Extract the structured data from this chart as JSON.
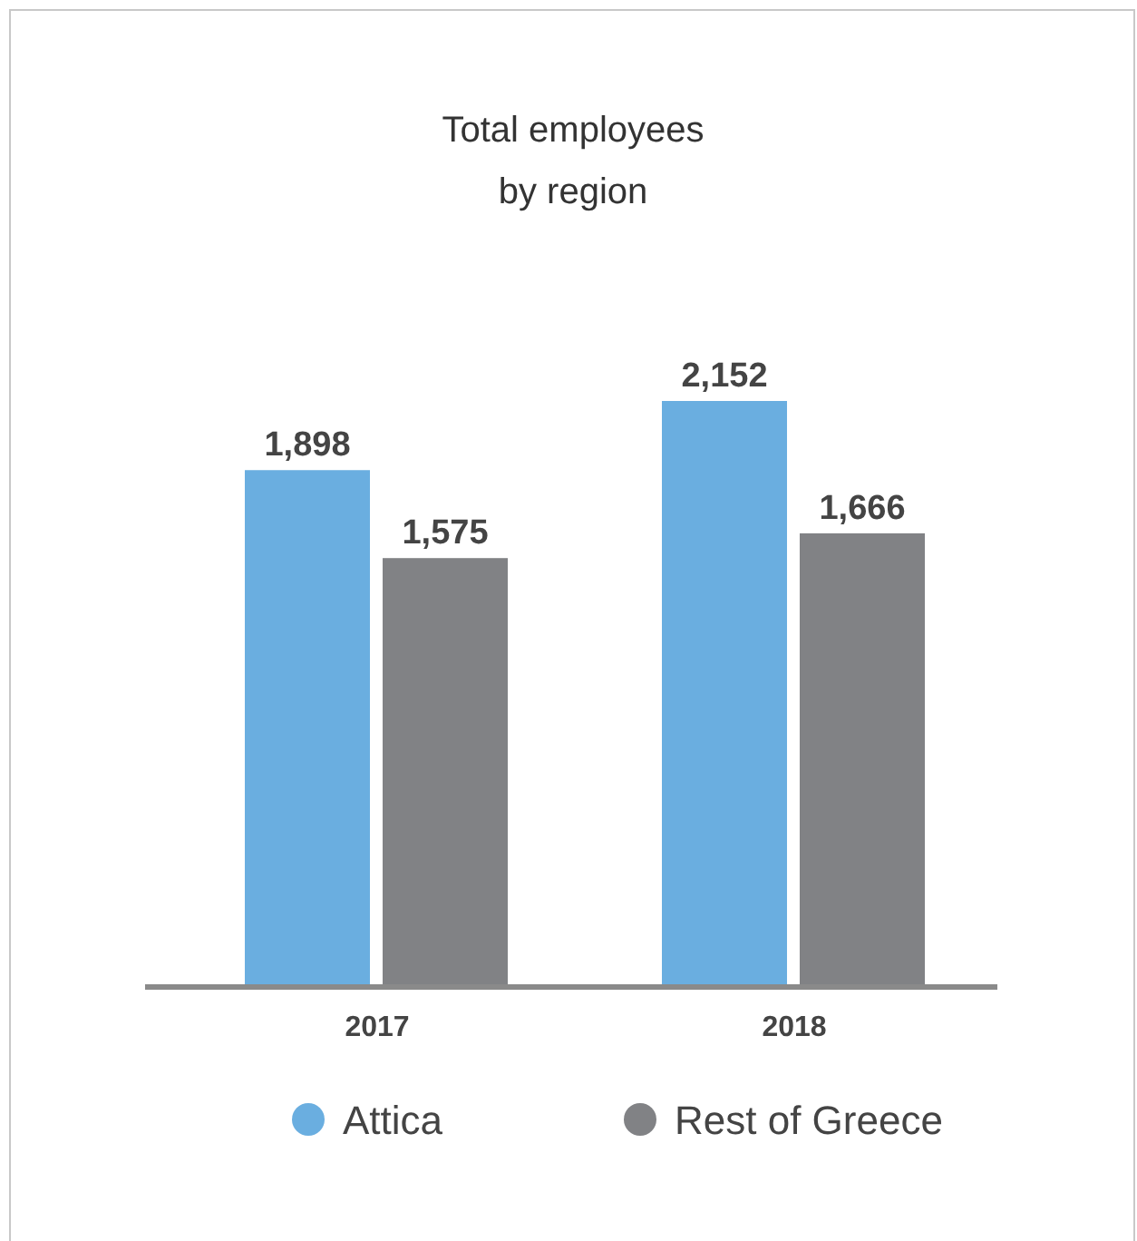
{
  "chart_data": {
    "type": "bar",
    "title": "Total employees\nby region",
    "categories": [
      "2017",
      "2018"
    ],
    "series": [
      {
        "name": "Attica",
        "color": "#6aaee0",
        "values": [
          1898,
          2152
        ],
        "value_labels": [
          "1,898",
          "2,152"
        ]
      },
      {
        "name": "Rest of Greece",
        "color": "#818285",
        "values": [
          1575,
          1666
        ],
        "value_labels": [
          "1,575",
          "1,666"
        ]
      }
    ],
    "legend": "bottom"
  }
}
